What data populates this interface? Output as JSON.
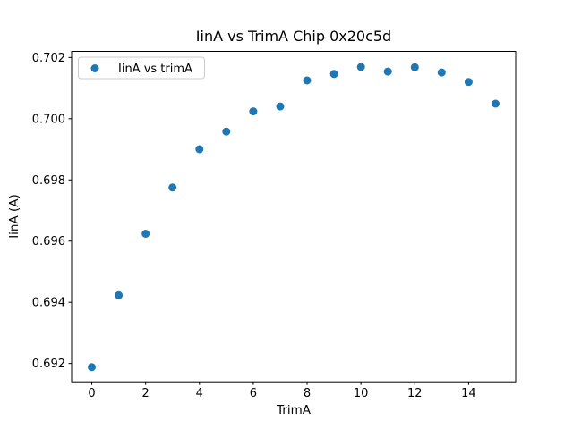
{
  "chart_data": {
    "type": "scatter",
    "title": "IinA vs TrimA Chip 0x20c5d",
    "xlabel": "TrimA",
    "ylabel": "IinA (A)",
    "legend": {
      "label": "IinA vs trimA",
      "position": "upper left"
    },
    "marker_color": "#1f77b4",
    "background_color": "#ffffff",
    "spine_color": "#000000",
    "legend_border_color": "#cccccc",
    "grid": false,
    "x": [
      0,
      1,
      2,
      3,
      4,
      5,
      6,
      7,
      8,
      9,
      10,
      11,
      12,
      13,
      14,
      15
    ],
    "y": [
      0.69188,
      0.69423,
      0.69624,
      0.69775,
      0.699,
      0.69958,
      0.70024,
      0.7004,
      0.70125,
      0.70146,
      0.70169,
      0.70154,
      0.70168,
      0.70151,
      0.7012,
      0.70049
    ],
    "xlim": [
      -0.75,
      15.75
    ],
    "ylim": [
      0.6914,
      0.7022
    ],
    "xticks": [
      0,
      2,
      4,
      6,
      8,
      10,
      12,
      14
    ],
    "yticks": [
      0.692,
      0.694,
      0.696,
      0.698,
      0.7,
      0.702
    ],
    "ytick_decimals": 3
  }
}
